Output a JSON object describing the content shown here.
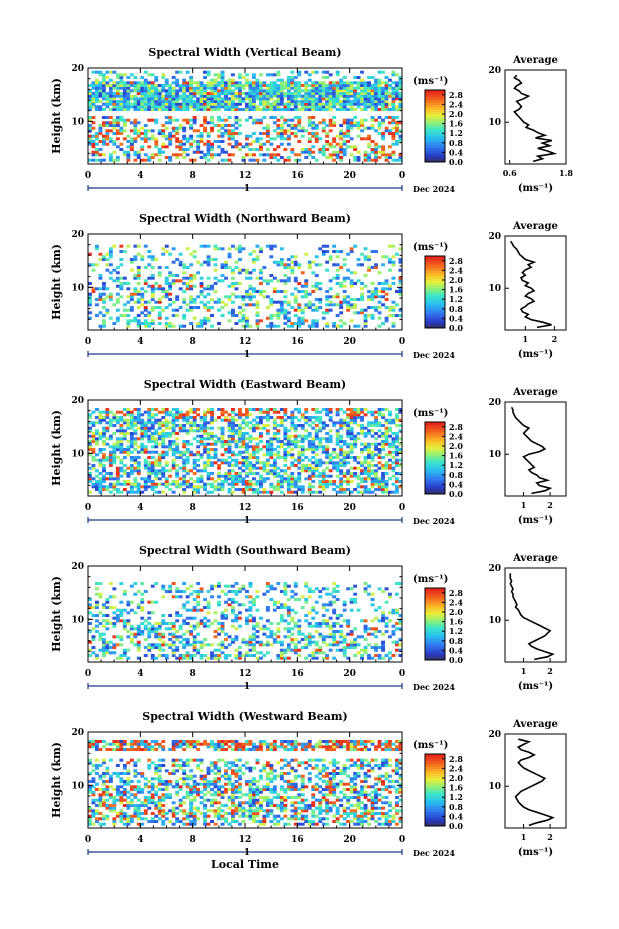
{
  "chart_data": [
    {
      "type": "heatmap",
      "title": "Spectral Width (Vertical Beam)",
      "ylabel": "Height (km)",
      "xlabel": "",
      "x_ticks": [
        "0",
        "4",
        "8",
        "12",
        "16",
        "20",
        "0"
      ],
      "y_ticks": [
        "10",
        "20"
      ],
      "date_label": "Dec 2024",
      "day_label": "1",
      "xlim": [
        0,
        24
      ],
      "ylim": [
        2,
        20
      ],
      "colorbar": {
        "unit": "(ms⁻¹)",
        "ticks": [
          "0.0",
          "0.4",
          "0.8",
          "1.2",
          "1.6",
          "2.0",
          "2.4",
          "2.8"
        ],
        "range": [
          0,
          3
        ]
      },
      "average_profile": {
        "title": "Average",
        "xlabel": "(ms⁻¹)",
        "x_ticks": [
          "0.6",
          "1.8"
        ],
        "xlim": [
          0.5,
          1.8
        ],
        "y_ticks": [
          "10",
          "20"
        ],
        "height_km": [
          2.5,
          3,
          3.5,
          4,
          4.5,
          5,
          5.5,
          6,
          6.5,
          7,
          7.5,
          8,
          8.5,
          9,
          9.5,
          10,
          10.5,
          11,
          11.5,
          12,
          12.5,
          13,
          13.5,
          14,
          14.5,
          15,
          15.5,
          16,
          16.5,
          17,
          17.5,
          18,
          18.5,
          19
        ],
        "width_ms": [
          1.1,
          1.3,
          1.2,
          1.55,
          1.4,
          1.2,
          1.45,
          1.3,
          1.5,
          1.15,
          1.35,
          1.2,
          1.1,
          0.95,
          1.0,
          0.9,
          0.85,
          0.8,
          0.75,
          0.7,
          0.8,
          0.85,
          0.8,
          0.75,
          0.9,
          1.0,
          0.85,
          0.8,
          0.7,
          0.75,
          0.85,
          0.8,
          0.7,
          0.75
        ]
      }
    },
    {
      "type": "heatmap",
      "title": "Spectral Width (Northward Beam)",
      "ylabel": "Height (km)",
      "xlabel": "",
      "x_ticks": [
        "0",
        "4",
        "8",
        "12",
        "16",
        "20",
        "0"
      ],
      "y_ticks": [
        "10",
        "20"
      ],
      "date_label": "Dec 2024",
      "day_label": "1",
      "xlim": [
        0,
        24
      ],
      "ylim": [
        2,
        20
      ],
      "colorbar": {
        "unit": "(ms⁻¹)",
        "ticks": [
          "0.0",
          "0.4",
          "0.8",
          "1.2",
          "1.6",
          "2.0",
          "2.4",
          "2.8"
        ],
        "range": [
          0,
          3
        ]
      },
      "average_profile": {
        "title": "Average",
        "xlabel": "(ms⁻¹)",
        "x_ticks": [
          "1",
          "2"
        ],
        "xlim": [
          0.3,
          2.4
        ],
        "y_ticks": [
          "10",
          "20"
        ],
        "height_km": [
          2.5,
          3,
          3.5,
          4,
          4.5,
          5,
          5.5,
          6,
          6.5,
          7,
          7.5,
          8,
          8.5,
          9,
          9.5,
          10,
          10.5,
          11,
          11.5,
          12,
          12.5,
          13,
          13.5,
          14,
          14.5,
          15,
          15.5,
          16,
          16.5,
          17,
          17.5,
          18,
          18.5,
          19
        ],
        "width_ms": [
          1.4,
          1.9,
          1.6,
          1.2,
          1.0,
          1.1,
          0.9,
          0.85,
          1.0,
          1.1,
          1.3,
          1.2,
          1.0,
          1.1,
          1.3,
          1.2,
          1.0,
          1.1,
          0.9,
          0.85,
          1.0,
          0.9,
          1.0,
          1.2,
          1.1,
          1.3,
          1.0,
          0.9,
          0.8,
          0.75,
          0.7,
          0.6,
          0.55,
          0.5
        ]
      }
    },
    {
      "type": "heatmap",
      "title": "Spectral Width (Eastward Beam)",
      "ylabel": "Height (km)",
      "xlabel": "",
      "x_ticks": [
        "0",
        "4",
        "8",
        "12",
        "16",
        "20",
        "0"
      ],
      "y_ticks": [
        "10",
        "20"
      ],
      "date_label": "Dec 2024",
      "day_label": "1",
      "xlim": [
        0,
        24
      ],
      "ylim": [
        2,
        20
      ],
      "colorbar": {
        "unit": "(ms⁻¹)",
        "ticks": [
          "0.0",
          "0.4",
          "0.8",
          "1.2",
          "1.6",
          "2.0",
          "2.4",
          "2.8"
        ],
        "range": [
          0,
          3
        ]
      },
      "average_profile": {
        "title": "Average",
        "xlabel": "(ms⁻¹)",
        "x_ticks": [
          "1",
          "2"
        ],
        "xlim": [
          0.3,
          2.6
        ],
        "y_ticks": [
          "10",
          "20"
        ],
        "height_km": [
          2.5,
          3,
          3.5,
          4,
          4.5,
          5,
          5.5,
          6,
          6.5,
          7,
          7.5,
          8,
          8.5,
          9,
          9.5,
          10,
          10.5,
          11,
          11.5,
          12,
          12.5,
          13,
          13.5,
          14,
          14.5,
          15,
          15.5,
          16,
          16.5,
          17,
          17.5,
          18,
          18.5,
          19
        ],
        "width_ms": [
          1.3,
          1.8,
          2.0,
          1.6,
          1.5,
          1.9,
          1.6,
          1.5,
          1.3,
          1.2,
          1.4,
          1.3,
          1.2,
          1.1,
          1.0,
          1.2,
          1.6,
          1.8,
          1.7,
          1.5,
          1.3,
          1.2,
          1.1,
          1.0,
          1.1,
          1.2,
          1.0,
          0.9,
          0.8,
          0.7,
          0.65,
          0.6,
          0.6,
          0.55
        ]
      }
    },
    {
      "type": "heatmap",
      "title": "Spectral Width (Southward Beam)",
      "ylabel": "Height (km)",
      "xlabel": "",
      "x_ticks": [
        "0",
        "4",
        "8",
        "12",
        "16",
        "20",
        "0"
      ],
      "y_ticks": [
        "10",
        "20"
      ],
      "date_label": "Dec 2024",
      "day_label": "1",
      "xlim": [
        0,
        24
      ],
      "ylim": [
        2,
        20
      ],
      "colorbar": {
        "unit": "(ms⁻¹)",
        "ticks": [
          "0.0",
          "0.4",
          "0.8",
          "1.2",
          "1.6",
          "2.0",
          "2.4",
          "2.8"
        ],
        "range": [
          0,
          3
        ]
      },
      "average_profile": {
        "title": "Average",
        "xlabel": "(ms⁻¹)",
        "x_ticks": [
          "1",
          "2"
        ],
        "xlim": [
          0.3,
          2.6
        ],
        "y_ticks": [
          "10",
          "20"
        ],
        "height_km": [
          2.5,
          3,
          3.5,
          4,
          4.5,
          5,
          5.5,
          6,
          6.5,
          7,
          7.5,
          8,
          8.5,
          9,
          9.5,
          10,
          10.5,
          11,
          11.5,
          12,
          12.5,
          13,
          13.5,
          14,
          14.5,
          15,
          15.5,
          16,
          16.5,
          17,
          17.5,
          18,
          18.5,
          19
        ],
        "width_ms": [
          1.4,
          1.9,
          2.1,
          1.8,
          1.5,
          1.3,
          1.2,
          1.4,
          1.6,
          1.8,
          1.9,
          2.0,
          1.8,
          1.6,
          1.4,
          1.2,
          1.0,
          0.9,
          0.85,
          0.8,
          0.7,
          0.75,
          0.7,
          0.65,
          0.6,
          0.6,
          0.55,
          0.6,
          0.55,
          0.5,
          0.55,
          0.5,
          0.5,
          0.5
        ]
      }
    },
    {
      "type": "heatmap",
      "title": "Spectral Width (Westward Beam)",
      "ylabel": "Height (km)",
      "xlabel": "Local Time",
      "x_ticks": [
        "0",
        "4",
        "8",
        "12",
        "16",
        "20",
        "0"
      ],
      "y_ticks": [
        "10",
        "20"
      ],
      "date_label": "Dec 2024",
      "day_label": "1",
      "xlim": [
        0,
        24
      ],
      "ylim": [
        2,
        20
      ],
      "colorbar": {
        "unit": "(ms⁻¹)",
        "ticks": [
          "0.0",
          "0.4",
          "0.8",
          "1.2",
          "1.6",
          "2.0",
          "2.4",
          "2.8"
        ],
        "range": [
          0,
          3
        ]
      },
      "average_profile": {
        "title": "Average",
        "xlabel": "(ms⁻¹)",
        "x_ticks": [
          "1",
          "2"
        ],
        "xlim": [
          0.3,
          2.6
        ],
        "y_ticks": [
          "10",
          "20"
        ],
        "height_km": [
          2.5,
          3,
          3.5,
          4,
          4.5,
          5,
          5.5,
          6,
          6.5,
          7,
          7.5,
          8,
          8.5,
          9,
          9.5,
          10,
          10.5,
          11,
          11.5,
          12,
          12.5,
          13,
          13.5,
          14,
          14.5,
          15,
          15.5,
          16,
          16.5,
          17,
          17.5,
          18,
          18.5,
          19
        ],
        "width_ms": [
          1.2,
          1.5,
          1.9,
          2.1,
          1.8,
          1.5,
          1.2,
          1.0,
          0.9,
          0.8,
          0.75,
          0.7,
          0.8,
          0.9,
          1.1,
          1.3,
          1.5,
          1.7,
          1.8,
          1.6,
          1.4,
          1.2,
          1.0,
          0.9,
          0.8,
          0.9,
          1.2,
          1.4,
          1.2,
          0.9,
          0.8,
          1.0,
          1.2,
          0.8
        ]
      }
    }
  ]
}
